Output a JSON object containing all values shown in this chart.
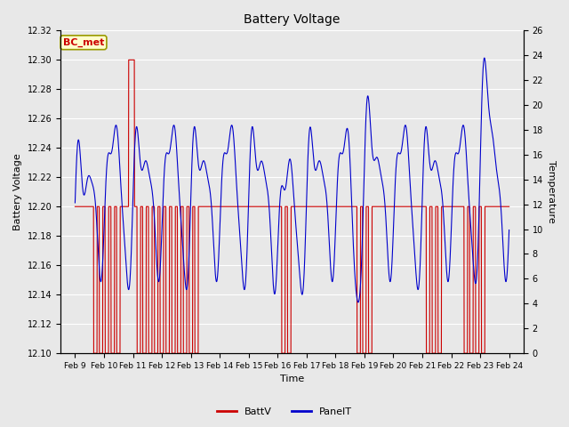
{
  "title": "Battery Voltage",
  "xlabel": "Time",
  "ylabel_left": "Battery Voltage",
  "ylabel_right": "Temperature",
  "ylim_left": [
    12.1,
    12.32
  ],
  "ylim_right": [
    0,
    26
  ],
  "background_color": "#e8e8e8",
  "grid_color": "white",
  "annotation_text": "BC_met",
  "annotation_bg": "#ffffcc",
  "annotation_border": "#999900",
  "annotation_text_color": "#cc0000",
  "battv_color": "#cc0000",
  "panelt_color": "#0000cc",
  "legend_battv": "BattV",
  "legend_panelt": "PanelT",
  "x_tick_labels": [
    "Feb 9",
    "Feb 10",
    "Feb 11",
    "Feb 12",
    "Feb 13",
    "Feb 14",
    "Feb 15",
    "Feb 16",
    "Feb 17",
    "Feb 18",
    "Feb 19",
    "Feb 20",
    "Feb 21",
    "Feb 22",
    "Feb 23",
    "Feb 24"
  ],
  "yticks_left": [
    12.1,
    12.12,
    12.14,
    12.16,
    12.18,
    12.2,
    12.22,
    12.24,
    12.26,
    12.28,
    12.3,
    12.32
  ],
  "yticks_right": [
    0,
    2,
    4,
    6,
    8,
    10,
    12,
    14,
    16,
    18,
    20,
    22,
    24,
    26
  ],
  "xlim": [
    -0.5,
    15.5
  ],
  "figsize": [
    6.4,
    4.8
  ],
  "dpi": 100
}
